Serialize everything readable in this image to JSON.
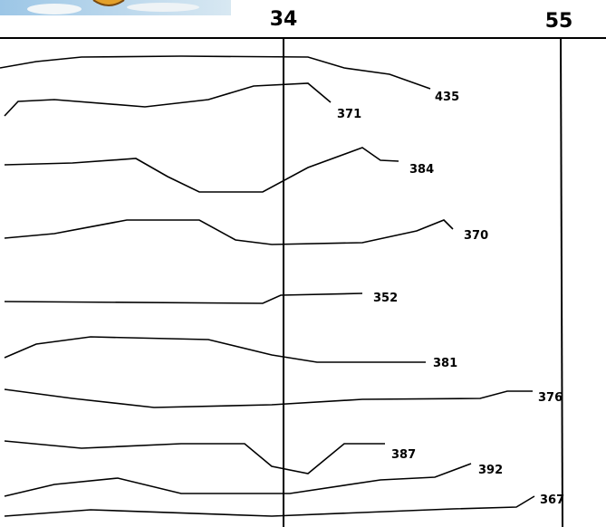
{
  "header": {
    "columns": [
      "34",
      "55"
    ]
  },
  "traces": {
    "labels": [
      "435",
      "371",
      "384",
      "370",
      "352",
      "381",
      "376",
      "387",
      "392",
      "367"
    ]
  }
}
